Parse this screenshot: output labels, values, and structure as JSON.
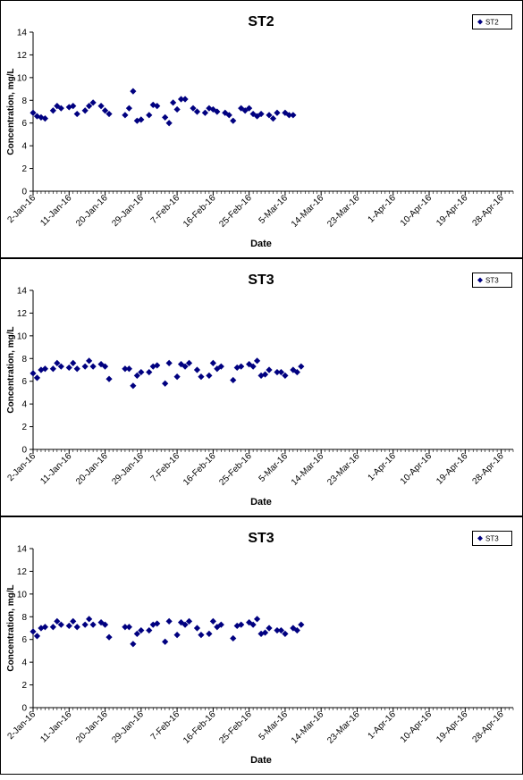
{
  "chart_data": [
    {
      "type": "scatter",
      "title": "ST2",
      "xlabel": "Date",
      "ylabel": "Concentration, mg/L",
      "ylim": [
        0,
        14
      ],
      "yticks": [
        0,
        2,
        4,
        6,
        8,
        10,
        12,
        14
      ],
      "xlim": [
        "2016-01-02",
        "2016-05-01"
      ],
      "xticks": [
        "2-Jan-16",
        "11-Jan-16",
        "20-Jan-16",
        "29-Jan-16",
        "7-Feb-16",
        "16-Feb-16",
        "25-Feb-16",
        "5-Mar-16",
        "14-Mar-16",
        "23-Mar-16",
        "1-Apr-16",
        "10-Apr-16",
        "19-Apr-16",
        "28-Apr-16"
      ],
      "grid": false,
      "legend": "top-right",
      "color": "#000080",
      "series": [
        {
          "name": "ST2",
          "points": [
            [
              "2016-01-02",
              6.9
            ],
            [
              "2016-01-03",
              6.6
            ],
            [
              "2016-01-04",
              6.5
            ],
            [
              "2016-01-05",
              6.4
            ],
            [
              "2016-01-07",
              7.1
            ],
            [
              "2016-01-08",
              7.5
            ],
            [
              "2016-01-09",
              7.3
            ],
            [
              "2016-01-11",
              7.4
            ],
            [
              "2016-01-12",
              7.5
            ],
            [
              "2016-01-13",
              6.8
            ],
            [
              "2016-01-15",
              7.1
            ],
            [
              "2016-01-16",
              7.5
            ],
            [
              "2016-01-17",
              7.8
            ],
            [
              "2016-01-19",
              7.5
            ],
            [
              "2016-01-20",
              7.1
            ],
            [
              "2016-01-21",
              6.8
            ],
            [
              "2016-01-25",
              6.7
            ],
            [
              "2016-01-26",
              7.3
            ],
            [
              "2016-01-27",
              8.8
            ],
            [
              "2016-01-28",
              6.2
            ],
            [
              "2016-01-29",
              6.3
            ],
            [
              "2016-01-31",
              6.7
            ],
            [
              "2016-02-01",
              7.6
            ],
            [
              "2016-02-02",
              7.5
            ],
            [
              "2016-02-04",
              6.5
            ],
            [
              "2016-02-05",
              6.0
            ],
            [
              "2016-02-06",
              7.8
            ],
            [
              "2016-02-07",
              7.2
            ],
            [
              "2016-02-08",
              8.1
            ],
            [
              "2016-02-09",
              8.1
            ],
            [
              "2016-02-11",
              7.3
            ],
            [
              "2016-02-12",
              7.0
            ],
            [
              "2016-02-14",
              6.9
            ],
            [
              "2016-02-15",
              7.3
            ],
            [
              "2016-02-16",
              7.2
            ],
            [
              "2016-02-17",
              7.0
            ],
            [
              "2016-02-19",
              6.9
            ],
            [
              "2016-02-20",
              6.7
            ],
            [
              "2016-02-21",
              6.2
            ],
            [
              "2016-02-23",
              7.3
            ],
            [
              "2016-02-24",
              7.1
            ],
            [
              "2016-02-25",
              7.3
            ],
            [
              "2016-02-26",
              6.8
            ],
            [
              "2016-02-27",
              6.6
            ],
            [
              "2016-02-28",
              6.8
            ],
            [
              "2016-03-01",
              6.7
            ],
            [
              "2016-03-02",
              6.4
            ],
            [
              "2016-03-03",
              6.9
            ],
            [
              "2016-03-05",
              6.9
            ],
            [
              "2016-03-06",
              6.7
            ],
            [
              "2016-03-07",
              6.7
            ]
          ]
        }
      ]
    },
    {
      "type": "scatter",
      "title": "ST3",
      "xlabel": "Date",
      "ylabel": "Concentration, mg/L",
      "ylim": [
        0,
        14
      ],
      "yticks": [
        0,
        2,
        4,
        6,
        8,
        10,
        12,
        14
      ],
      "xlim": [
        "2016-01-02",
        "2016-05-01"
      ],
      "xticks": [
        "2-Jan-16",
        "11-Jan-16",
        "20-Jan-16",
        "29-Jan-16",
        "7-Feb-16",
        "16-Feb-16",
        "25-Feb-16",
        "5-Mar-16",
        "14-Mar-16",
        "23-Mar-16",
        "1-Apr-16",
        "10-Apr-16",
        "19-Apr-16",
        "28-Apr-16"
      ],
      "grid": false,
      "legend": "top-right",
      "color": "#000080",
      "series": [
        {
          "name": "ST3",
          "points": [
            [
              "2016-01-02",
              6.7
            ],
            [
              "2016-01-03",
              6.3
            ],
            [
              "2016-01-04",
              7.0
            ],
            [
              "2016-01-05",
              7.1
            ],
            [
              "2016-01-07",
              7.1
            ],
            [
              "2016-01-08",
              7.6
            ],
            [
              "2016-01-09",
              7.3
            ],
            [
              "2016-01-11",
              7.2
            ],
            [
              "2016-01-12",
              7.6
            ],
            [
              "2016-01-13",
              7.1
            ],
            [
              "2016-01-15",
              7.3
            ],
            [
              "2016-01-16",
              7.8
            ],
            [
              "2016-01-17",
              7.3
            ],
            [
              "2016-01-19",
              7.5
            ],
            [
              "2016-01-20",
              7.3
            ],
            [
              "2016-01-21",
              6.2
            ],
            [
              "2016-01-25",
              7.1
            ],
            [
              "2016-01-26",
              7.1
            ],
            [
              "2016-01-27",
              5.6
            ],
            [
              "2016-01-28",
              6.5
            ],
            [
              "2016-01-29",
              6.8
            ],
            [
              "2016-01-31",
              6.8
            ],
            [
              "2016-02-01",
              7.3
            ],
            [
              "2016-02-02",
              7.4
            ],
            [
              "2016-02-04",
              5.8
            ],
            [
              "2016-02-05",
              7.6
            ],
            [
              "2016-02-07",
              6.4
            ],
            [
              "2016-02-08",
              7.5
            ],
            [
              "2016-02-09",
              7.3
            ],
            [
              "2016-02-10",
              7.6
            ],
            [
              "2016-02-12",
              7.0
            ],
            [
              "2016-02-13",
              6.4
            ],
            [
              "2016-02-15",
              6.5
            ],
            [
              "2016-02-16",
              7.6
            ],
            [
              "2016-02-17",
              7.1
            ],
            [
              "2016-02-18",
              7.3
            ],
            [
              "2016-02-21",
              6.1
            ],
            [
              "2016-02-22",
              7.2
            ],
            [
              "2016-02-23",
              7.3
            ],
            [
              "2016-02-25",
              7.5
            ],
            [
              "2016-02-26",
              7.3
            ],
            [
              "2016-02-27",
              7.8
            ],
            [
              "2016-02-28",
              6.5
            ],
            [
              "2016-02-29",
              6.6
            ],
            [
              "2016-03-01",
              7.0
            ],
            [
              "2016-03-03",
              6.8
            ],
            [
              "2016-03-04",
              6.8
            ],
            [
              "2016-03-05",
              6.5
            ],
            [
              "2016-03-07",
              7.0
            ],
            [
              "2016-03-08",
              6.8
            ],
            [
              "2016-03-09",
              7.3
            ]
          ]
        }
      ]
    },
    {
      "type": "scatter",
      "title": "ST3",
      "xlabel": "Date",
      "ylabel": "Concentration, mg/L",
      "ylim": [
        0,
        14
      ],
      "yticks": [
        0,
        2,
        4,
        6,
        8,
        10,
        12,
        14
      ],
      "xlim": [
        "2016-01-02",
        "2016-05-01"
      ],
      "xticks": [
        "2-Jan-16",
        "11-Jan-16",
        "20-Jan-16",
        "29-Jan-16",
        "7-Feb-16",
        "16-Feb-16",
        "25-Feb-16",
        "5-Mar-16",
        "14-Mar-16",
        "23-Mar-16",
        "1-Apr-16",
        "10-Apr-16",
        "19-Apr-16",
        "28-Apr-16"
      ],
      "grid": false,
      "legend": "top-right",
      "color": "#000080",
      "series": [
        {
          "name": "ST3",
          "points": [
            [
              "2016-01-02",
              6.7
            ],
            [
              "2016-01-03",
              6.3
            ],
            [
              "2016-01-04",
              7.0
            ],
            [
              "2016-01-05",
              7.1
            ],
            [
              "2016-01-07",
              7.1
            ],
            [
              "2016-01-08",
              7.6
            ],
            [
              "2016-01-09",
              7.3
            ],
            [
              "2016-01-11",
              7.2
            ],
            [
              "2016-01-12",
              7.6
            ],
            [
              "2016-01-13",
              7.1
            ],
            [
              "2016-01-15",
              7.3
            ],
            [
              "2016-01-16",
              7.8
            ],
            [
              "2016-01-17",
              7.3
            ],
            [
              "2016-01-19",
              7.5
            ],
            [
              "2016-01-20",
              7.3
            ],
            [
              "2016-01-21",
              6.2
            ],
            [
              "2016-01-25",
              7.1
            ],
            [
              "2016-01-26",
              7.1
            ],
            [
              "2016-01-27",
              5.6
            ],
            [
              "2016-01-28",
              6.5
            ],
            [
              "2016-01-29",
              6.8
            ],
            [
              "2016-01-31",
              6.8
            ],
            [
              "2016-02-01",
              7.3
            ],
            [
              "2016-02-02",
              7.4
            ],
            [
              "2016-02-04",
              5.8
            ],
            [
              "2016-02-05",
              7.6
            ],
            [
              "2016-02-07",
              6.4
            ],
            [
              "2016-02-08",
              7.5
            ],
            [
              "2016-02-09",
              7.3
            ],
            [
              "2016-02-10",
              7.6
            ],
            [
              "2016-02-12",
              7.0
            ],
            [
              "2016-02-13",
              6.4
            ],
            [
              "2016-02-15",
              6.5
            ],
            [
              "2016-02-16",
              7.6
            ],
            [
              "2016-02-17",
              7.1
            ],
            [
              "2016-02-18",
              7.3
            ],
            [
              "2016-02-21",
              6.1
            ],
            [
              "2016-02-22",
              7.2
            ],
            [
              "2016-02-23",
              7.3
            ],
            [
              "2016-02-25",
              7.5
            ],
            [
              "2016-02-26",
              7.3
            ],
            [
              "2016-02-27",
              7.8
            ],
            [
              "2016-02-28",
              6.5
            ],
            [
              "2016-02-29",
              6.6
            ],
            [
              "2016-03-01",
              7.0
            ],
            [
              "2016-03-03",
              6.8
            ],
            [
              "2016-03-04",
              6.8
            ],
            [
              "2016-03-05",
              6.5
            ],
            [
              "2016-03-07",
              7.0
            ],
            [
              "2016-03-08",
              6.8
            ],
            [
              "2016-03-09",
              7.3
            ]
          ]
        }
      ]
    }
  ]
}
